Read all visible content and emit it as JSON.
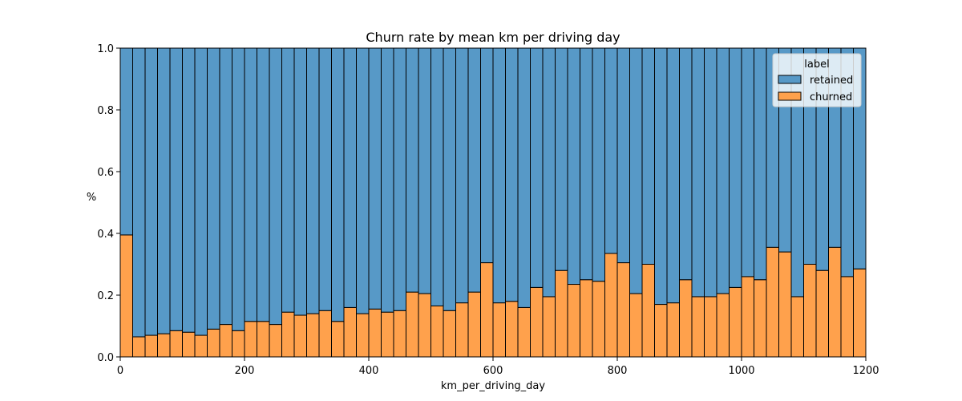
{
  "chart_data": {
    "type": "bar",
    "stacked": true,
    "normalized": true,
    "title": "Churn rate by mean km per driving day",
    "xlabel": "km_per_driving_day",
    "ylabel": "%",
    "xlim": [
      0,
      1200
    ],
    "ylim": [
      0,
      1.0
    ],
    "x_ticks": [
      "0",
      "200",
      "400",
      "600",
      "800",
      "1000",
      "1200"
    ],
    "y_ticks": [
      "0.0",
      "0.2",
      "0.4",
      "0.6",
      "0.8",
      "1.0"
    ],
    "bin_width": 20,
    "bin_starts": [
      0,
      20,
      40,
      60,
      80,
      100,
      120,
      140,
      160,
      180,
      200,
      220,
      240,
      260,
      280,
      300,
      320,
      340,
      360,
      380,
      400,
      420,
      440,
      460,
      480,
      500,
      520,
      540,
      560,
      580,
      600,
      620,
      640,
      660,
      680,
      700,
      720,
      740,
      760,
      780,
      800,
      820,
      840,
      860,
      880,
      900,
      920,
      940,
      960,
      980,
      1000,
      1020,
      1040,
      1060,
      1080,
      1100,
      1120,
      1140,
      1160,
      1180
    ],
    "legend": {
      "title": "label",
      "position": "top-right"
    },
    "colors": {
      "retained": "#5799c7",
      "churned": "#ffa14c",
      "edge": "#000000"
    },
    "series": [
      {
        "name": "retained",
        "values": [
          0.605,
          0.935,
          0.93,
          0.925,
          0.915,
          0.92,
          0.93,
          0.91,
          0.895,
          0.915,
          0.885,
          0.885,
          0.895,
          0.855,
          0.865,
          0.86,
          0.85,
          0.885,
          0.84,
          0.86,
          0.845,
          0.855,
          0.85,
          0.79,
          0.795,
          0.835,
          0.85,
          0.825,
          0.79,
          0.695,
          0.825,
          0.82,
          0.84,
          0.775,
          0.805,
          0.72,
          0.765,
          0.75,
          0.755,
          0.665,
          0.695,
          0.795,
          0.7,
          0.83,
          0.825,
          0.75,
          0.805,
          0.805,
          0.795,
          0.775,
          0.74,
          0.75,
          0.645,
          0.66,
          0.805,
          0.7,
          0.72,
          0.645,
          0.74,
          0.715
        ]
      },
      {
        "name": "churned",
        "values": [
          0.395,
          0.065,
          0.07,
          0.075,
          0.085,
          0.08,
          0.07,
          0.09,
          0.105,
          0.085,
          0.115,
          0.115,
          0.105,
          0.145,
          0.135,
          0.14,
          0.15,
          0.115,
          0.16,
          0.14,
          0.155,
          0.145,
          0.15,
          0.21,
          0.205,
          0.165,
          0.15,
          0.175,
          0.21,
          0.305,
          0.175,
          0.18,
          0.16,
          0.225,
          0.195,
          0.28,
          0.235,
          0.25,
          0.245,
          0.335,
          0.305,
          0.205,
          0.3,
          0.17,
          0.175,
          0.25,
          0.195,
          0.195,
          0.205,
          0.225,
          0.26,
          0.25,
          0.355,
          0.34,
          0.195,
          0.3,
          0.28,
          0.355,
          0.26,
          0.285
        ]
      }
    ]
  }
}
